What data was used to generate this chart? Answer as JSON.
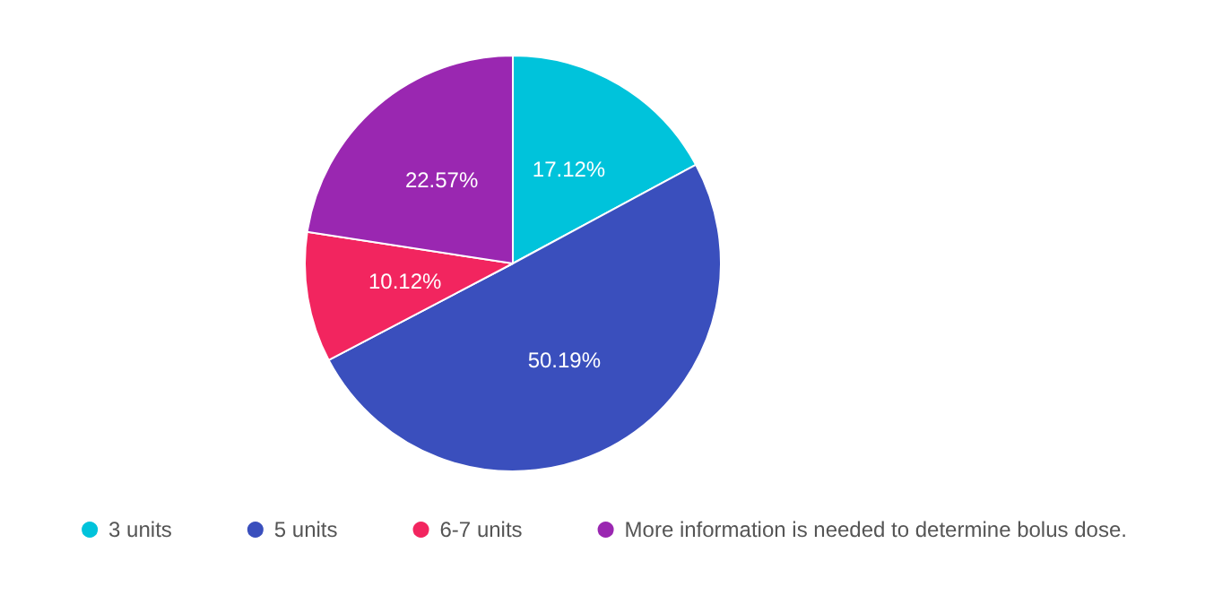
{
  "chart_data": {
    "type": "pie",
    "categories": [
      "3 units",
      "5 units",
      "6-7 units",
      "More information is needed to determine bolus dose."
    ],
    "values": [
      17.12,
      50.19,
      10.12,
      22.57
    ],
    "colors": [
      "#00c3db",
      "#3a4fbd",
      "#f2255f",
      "#9a27b1"
    ],
    "value_labels": [
      "17.12%",
      "50.19%",
      "10.12%",
      "22.57%"
    ],
    "legend": "bottom"
  }
}
